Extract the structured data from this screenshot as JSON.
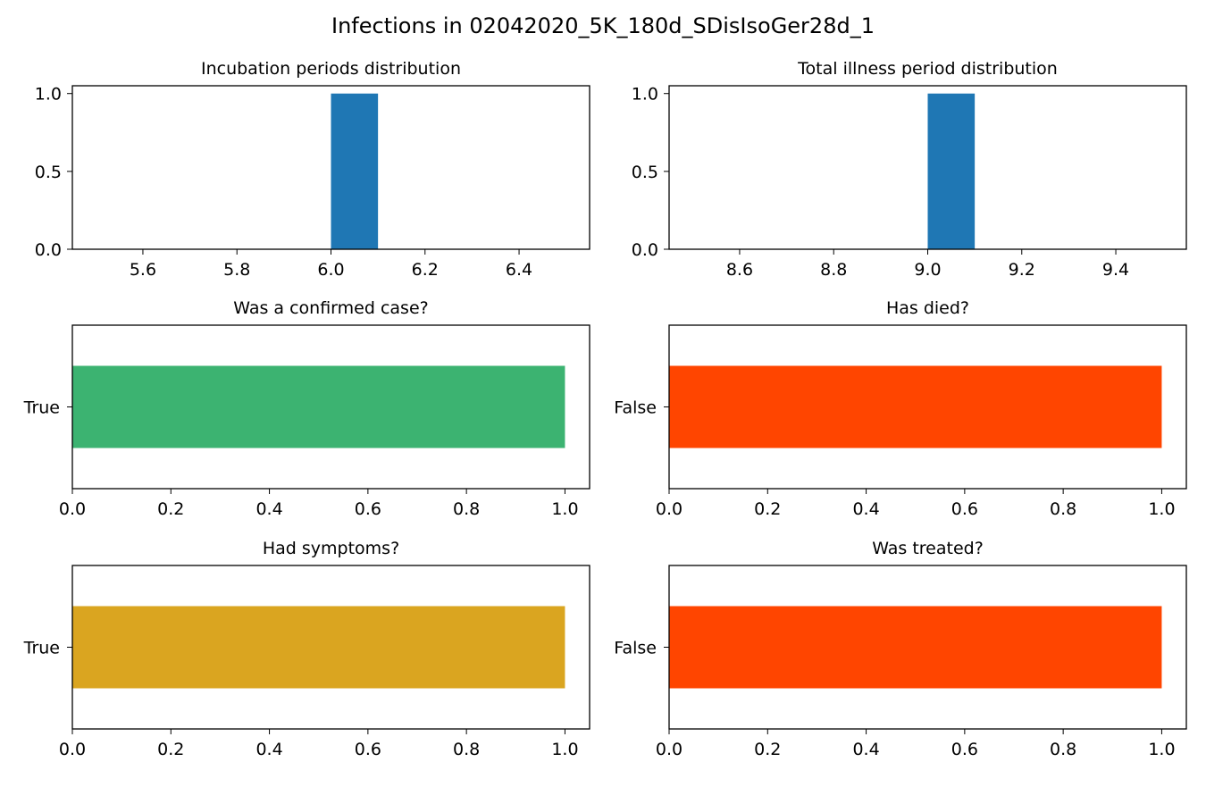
{
  "figure": {
    "title": "Infections in 02042020_5K_180d_SDisIsoGer28d_1"
  },
  "chart_data": [
    {
      "type": "bar",
      "title": "Incubation periods distribution",
      "orientation": "vertical",
      "bins": [
        {
          "x0": 6.0,
          "x1": 6.1,
          "value": 1.0
        }
      ],
      "xlim": [
        5.45,
        6.55
      ],
      "ylim": [
        0,
        1.05
      ],
      "xticks": [
        5.6,
        5.8,
        6.0,
        6.2,
        6.4
      ],
      "xtick_labels": [
        "5.6",
        "5.8",
        "6.0",
        "6.2",
        "6.4"
      ],
      "yticks": [
        0.0,
        0.5,
        1.0
      ],
      "ytick_labels": [
        "0.0",
        "0.5",
        "1.0"
      ],
      "color": "#1f77b4"
    },
    {
      "type": "bar",
      "title": "Total illness period distribution",
      "orientation": "vertical",
      "bins": [
        {
          "x0": 9.0,
          "x1": 9.1,
          "value": 1.0
        }
      ],
      "xlim": [
        8.45,
        9.55
      ],
      "ylim": [
        0,
        1.05
      ],
      "xticks": [
        8.6,
        8.8,
        9.0,
        9.2,
        9.4
      ],
      "xtick_labels": [
        "8.6",
        "8.8",
        "9.0",
        "9.2",
        "9.4"
      ],
      "yticks": [
        0.0,
        0.5,
        1.0
      ],
      "ytick_labels": [
        "0.0",
        "0.5",
        "1.0"
      ],
      "color": "#1f77b4"
    },
    {
      "type": "bar",
      "title": "Was a confirmed case?",
      "orientation": "horizontal",
      "categories": [
        "True"
      ],
      "values": [
        1.0
      ],
      "xlim": [
        0,
        1.05
      ],
      "xticks": [
        0.0,
        0.2,
        0.4,
        0.6,
        0.8,
        1.0
      ],
      "xtick_labels": [
        "0.0",
        "0.2",
        "0.4",
        "0.6",
        "0.8",
        "1.0"
      ],
      "color": "#3cb371"
    },
    {
      "type": "bar",
      "title": "Has died?",
      "orientation": "horizontal",
      "categories": [
        "False"
      ],
      "values": [
        1.0
      ],
      "xlim": [
        0,
        1.05
      ],
      "xticks": [
        0.0,
        0.2,
        0.4,
        0.6,
        0.8,
        1.0
      ],
      "xtick_labels": [
        "0.0",
        "0.2",
        "0.4",
        "0.6",
        "0.8",
        "1.0"
      ],
      "color": "#ff4500"
    },
    {
      "type": "bar",
      "title": "Had symptoms?",
      "orientation": "horizontal",
      "categories": [
        "True"
      ],
      "values": [
        1.0
      ],
      "xlim": [
        0,
        1.05
      ],
      "xticks": [
        0.0,
        0.2,
        0.4,
        0.6,
        0.8,
        1.0
      ],
      "xtick_labels": [
        "0.0",
        "0.2",
        "0.4",
        "0.6",
        "0.8",
        "1.0"
      ],
      "color": "#daa520"
    },
    {
      "type": "bar",
      "title": "Was treated?",
      "orientation": "horizontal",
      "categories": [
        "False"
      ],
      "values": [
        1.0
      ],
      "xlim": [
        0,
        1.05
      ],
      "xticks": [
        0.0,
        0.2,
        0.4,
        0.6,
        0.8,
        1.0
      ],
      "xtick_labels": [
        "0.0",
        "0.2",
        "0.4",
        "0.6",
        "0.8",
        "1.0"
      ],
      "color": "#ff4500"
    }
  ]
}
